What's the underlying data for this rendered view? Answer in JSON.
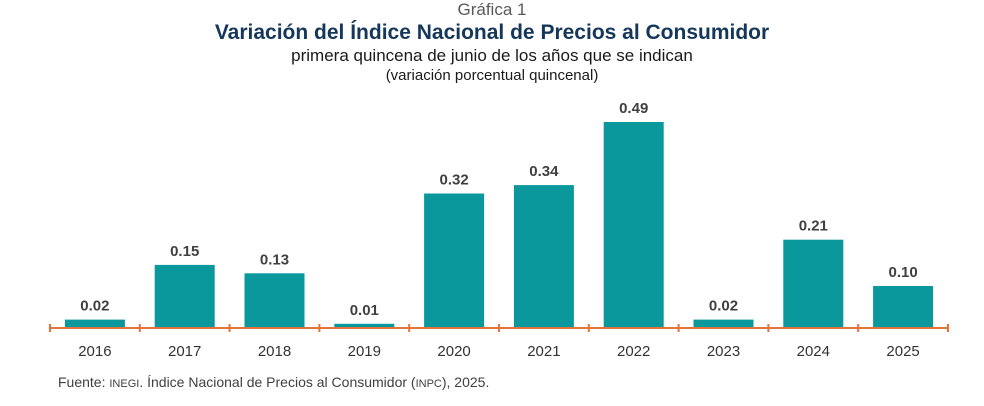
{
  "header": {
    "kicker": "Gráfica 1",
    "title": "Variación del Índice Nacional de Precios al Consumidor",
    "subtitle": "primera quincena de junio de los años que se indican",
    "unit": "(variación porcentual quincenal)"
  },
  "chart_data": {
    "type": "bar",
    "categories": [
      "2016",
      "2017",
      "2018",
      "2019",
      "2020",
      "2021",
      "2022",
      "2023",
      "2024",
      "2025"
    ],
    "values": [
      0.02,
      0.15,
      0.13,
      0.01,
      0.32,
      0.34,
      0.49,
      0.02,
      0.21,
      0.1
    ],
    "data_labels": [
      "0.02",
      "0.15",
      "0.13",
      "0.01",
      "0.32",
      "0.34",
      "0.49",
      "0.02",
      "0.21",
      "0.10"
    ],
    "title": "Variación del Índice Nacional de Precios al Consumidor",
    "subtitle": "primera quincena de junio de los años que se indican",
    "ylabel": "",
    "xlabel": "",
    "ylim": [
      0,
      0.49
    ],
    "grid": false,
    "legend": "none",
    "colors": {
      "bar": "#0a989d",
      "axis": "#e0743a",
      "label": "#404040"
    }
  },
  "footer": {
    "prefix": "Fuente: ",
    "org": "INEGI",
    "middle": ". Índice Nacional de Precios al Consumidor ",
    "abbr_open": "(",
    "abbr": "INPC",
    "abbr_close": ")",
    "suffix": ", 2025."
  }
}
